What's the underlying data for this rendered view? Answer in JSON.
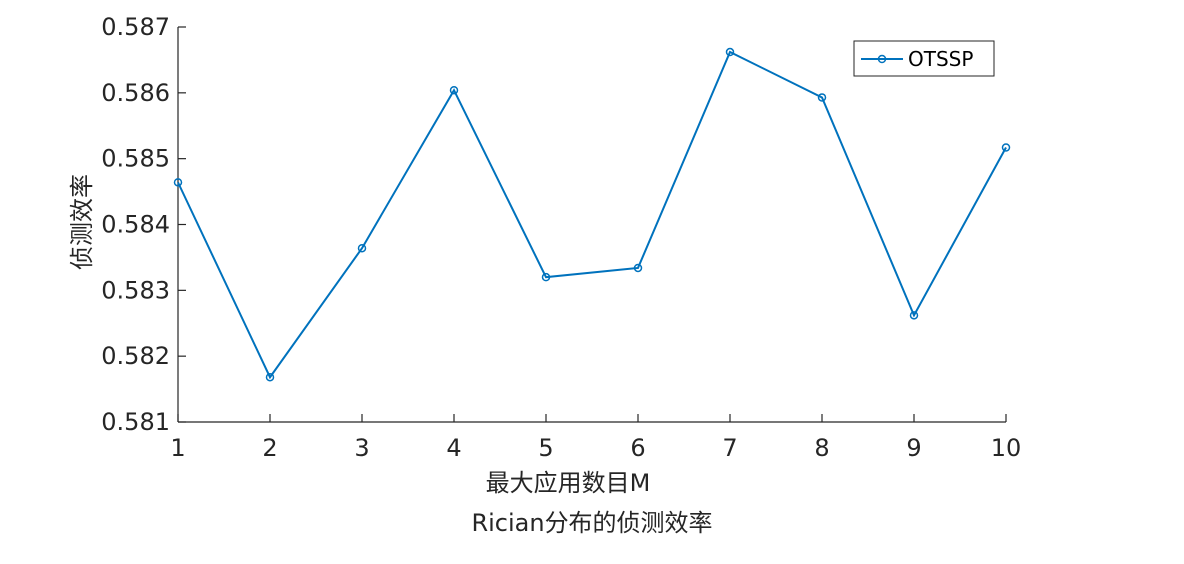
{
  "chart_data": {
    "type": "line",
    "title": "",
    "xlabel": "最大应用数目M",
    "ylabel": "侦测效率",
    "caption": "Rician分布的侦测效率",
    "x": [
      1,
      2,
      3,
      4,
      5,
      6,
      7,
      8,
      9,
      10
    ],
    "xlim": [
      1,
      10
    ],
    "ylim": [
      0.581,
      0.587
    ],
    "xticks": [
      "1",
      "2",
      "3",
      "4",
      "5",
      "6",
      "7",
      "8",
      "9",
      "10"
    ],
    "yticks": [
      "0.581",
      "0.582",
      "0.583",
      "0.584",
      "0.585",
      "0.586",
      "0.587"
    ],
    "grid": false,
    "legend_position": "top-right",
    "series": [
      {
        "name": "OTSSP",
        "color": "#0072BD",
        "marker": "circle",
        "values": [
          0.58464,
          0.58168,
          0.58364,
          0.58604,
          0.5832,
          0.58334,
          0.58662,
          0.58593,
          0.58262,
          0.58517
        ]
      }
    ]
  }
}
